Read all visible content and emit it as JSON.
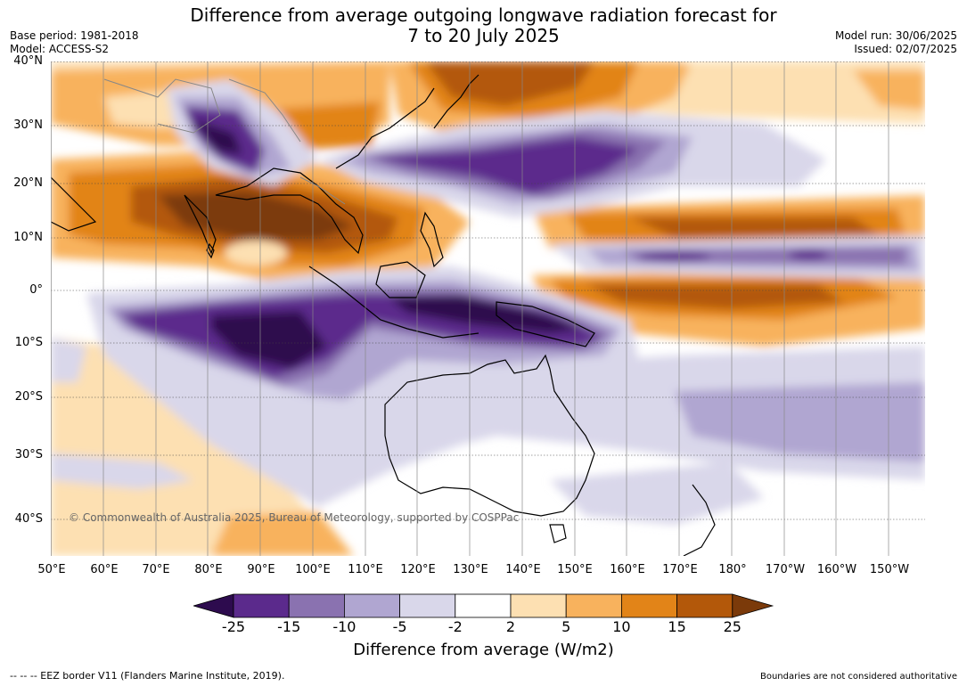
{
  "title_line1": "Difference from average outgoing longwave radiation forecast for",
  "title_line2": "7 to 20 July 2025",
  "base_period": "Base period: 1981-2018",
  "model": "Model: ACCESS-S2",
  "model_run": "Model run: 30/06/2025",
  "issued": "Issued: 02/07/2025",
  "lat_labels": [
    "40°N",
    "30°N",
    "20°N",
    "10°N",
    "0°",
    "10°S",
    "20°S",
    "30°S",
    "40°S"
  ],
  "lon_labels": [
    "50°E",
    "60°E",
    "70°E",
    "80°E",
    "90°E",
    "100°E",
    "110°E",
    "120°E",
    "130°E",
    "140°E",
    "150°E",
    "160°E",
    "170°E",
    "180°",
    "170°W",
    "160°W",
    "150°W"
  ],
  "colorbar": {
    "ticks": [
      "-25",
      "-15",
      "-10",
      "-5",
      "-2",
      "2",
      "5",
      "10",
      "15",
      "25"
    ],
    "colors": [
      "#2d0b4e",
      "#5b2a8c",
      "#8a72b0",
      "#b0a6d1",
      "#d9d7ea",
      "#ffffff",
      "#fde0b2",
      "#f8b25d",
      "#e28418",
      "#b3580a",
      "#7b3a0a"
    ],
    "label": "Difference from average (W/m2)"
  },
  "copyright": "© Commonwealth of Australia 2025, Bureau of Meteorology, supported by COSPPac",
  "footer_left": "--  --  -- EEZ border V11 (Flanders Marine Institute, 2019).",
  "footer_right": "Boundaries are not considered authoritative"
}
